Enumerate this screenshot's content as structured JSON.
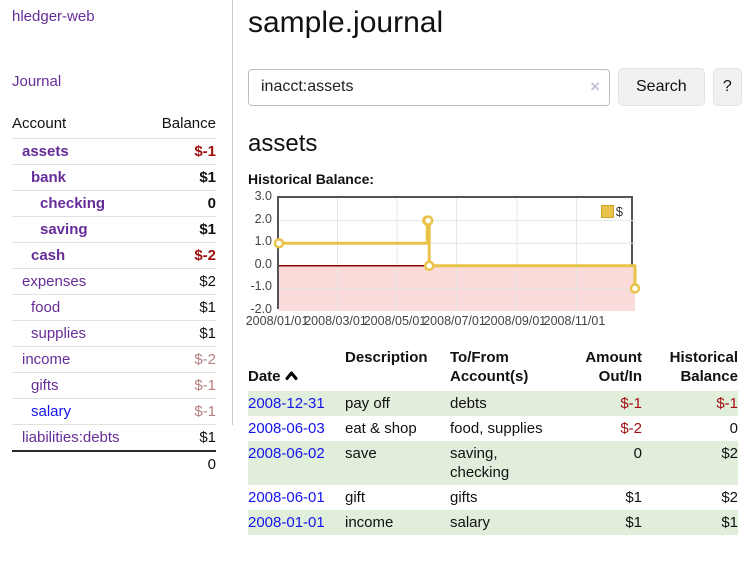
{
  "colors": {
    "link_purple": "#662d98",
    "link_blue": "#1414ee",
    "negative_strong": "#a01010",
    "negative_muted": "#b77f7f",
    "row_green": "#e0eedb",
    "chart_line": "#e9c349",
    "chart_zero_line": "#8b0000",
    "chart_negative_fill": "#fbdada",
    "grid_line": "#e6e6e6"
  },
  "sidebar": {
    "app_title": "hledger-web",
    "journal_link": "Journal",
    "table": {
      "headers": {
        "account": "Account",
        "balance": "Balance"
      },
      "rows": [
        {
          "account": "assets",
          "balance": "$-1",
          "depth": 1,
          "bold": true,
          "neg": "strong",
          "link": "purple"
        },
        {
          "account": "bank",
          "balance": "$1",
          "depth": 2,
          "bold": true,
          "neg": "none",
          "link": "purple"
        },
        {
          "account": "checking",
          "balance": "0",
          "depth": 3,
          "bold": true,
          "neg": "none",
          "link": "purple"
        },
        {
          "account": "saving",
          "balance": "$1",
          "depth": 3,
          "bold": true,
          "neg": "none",
          "link": "purple"
        },
        {
          "account": "cash",
          "balance": "$-2",
          "depth": 2,
          "bold": true,
          "neg": "strong",
          "link": "purple"
        },
        {
          "account": "expenses",
          "balance": "$2",
          "depth": 1,
          "bold": false,
          "neg": "none",
          "link": "purple"
        },
        {
          "account": "food",
          "balance": "$1",
          "depth": 2,
          "bold": false,
          "neg": "none",
          "link": "purple"
        },
        {
          "account": "supplies",
          "balance": "$1",
          "depth": 2,
          "bold": false,
          "neg": "none",
          "link": "purple"
        },
        {
          "account": "income",
          "balance": "$-2",
          "depth": 1,
          "bold": false,
          "neg": "muted",
          "link": "purple"
        },
        {
          "account": "gifts",
          "balance": "$-1",
          "depth": 2,
          "bold": false,
          "neg": "muted",
          "link": "purple"
        },
        {
          "account": "salary",
          "balance": "$-1",
          "depth": 2,
          "bold": false,
          "neg": "muted",
          "link": "blue"
        },
        {
          "account": "liabilities:debts",
          "balance": "$1",
          "depth": 1,
          "bold": false,
          "neg": "none",
          "link": "purple"
        }
      ],
      "total": "0"
    }
  },
  "main": {
    "title": "sample.journal",
    "search": {
      "value": "inacct:assets",
      "clear_label": "×",
      "button_label": "Search",
      "help_label": "?"
    },
    "account_heading": "assets",
    "register": {
      "headers": {
        "date": "Date",
        "description": "Description",
        "accounts": "To/From\nAccount(s)",
        "amount": "Amount\nOut/In",
        "balance": "Historical\nBalance"
      },
      "rows": [
        {
          "date": "2008-12-31",
          "description": "pay off",
          "accounts": "debts",
          "amount": "$-1",
          "amount_neg": true,
          "balance": "$-1",
          "balance_neg": true,
          "green": true
        },
        {
          "date": "2008-06-03",
          "description": "eat & shop",
          "accounts": "food, supplies",
          "amount": "$-2",
          "amount_neg": true,
          "balance": "0",
          "balance_neg": false,
          "green": false
        },
        {
          "date": "2008-06-02",
          "description": "save",
          "accounts": "saving, checking",
          "amount": "0",
          "amount_neg": false,
          "balance": "$2",
          "balance_neg": false,
          "green": true
        },
        {
          "date": "2008-06-01",
          "description": "gift",
          "accounts": "gifts",
          "amount": "$1",
          "amount_neg": false,
          "balance": "$2",
          "balance_neg": false,
          "green": false
        },
        {
          "date": "2008-01-01",
          "description": "income",
          "accounts": "salary",
          "amount": "$1",
          "amount_neg": false,
          "balance": "$1",
          "balance_neg": false,
          "green": true
        }
      ]
    }
  },
  "chart_data": {
    "type": "line",
    "title": "Historical Balance:",
    "step": true,
    "grid": true,
    "legend_position": "top-right",
    "legend": [
      {
        "label": "$",
        "color": "#e9c349"
      }
    ],
    "x": [
      "2008-01-01",
      "2008-06-01",
      "2008-06-02",
      "2008-06-03",
      "2008-12-31"
    ],
    "series": [
      {
        "name": "$",
        "values": [
          1,
          2,
          2,
          0,
          -1
        ]
      }
    ],
    "x_range": [
      "2008-01-01",
      "2008-12-31"
    ],
    "ylim": [
      -2,
      3
    ],
    "y_ticks": [
      "3.0",
      "2.0",
      "1.0",
      "0.0",
      "-1.0",
      "-2.0"
    ],
    "x_ticks": [
      "2008/01/01",
      "2008/03/01",
      "2008/05/01",
      "2008/07/01",
      "2008/09/01",
      "2008/11/01"
    ],
    "negative_region_shaded": true
  }
}
